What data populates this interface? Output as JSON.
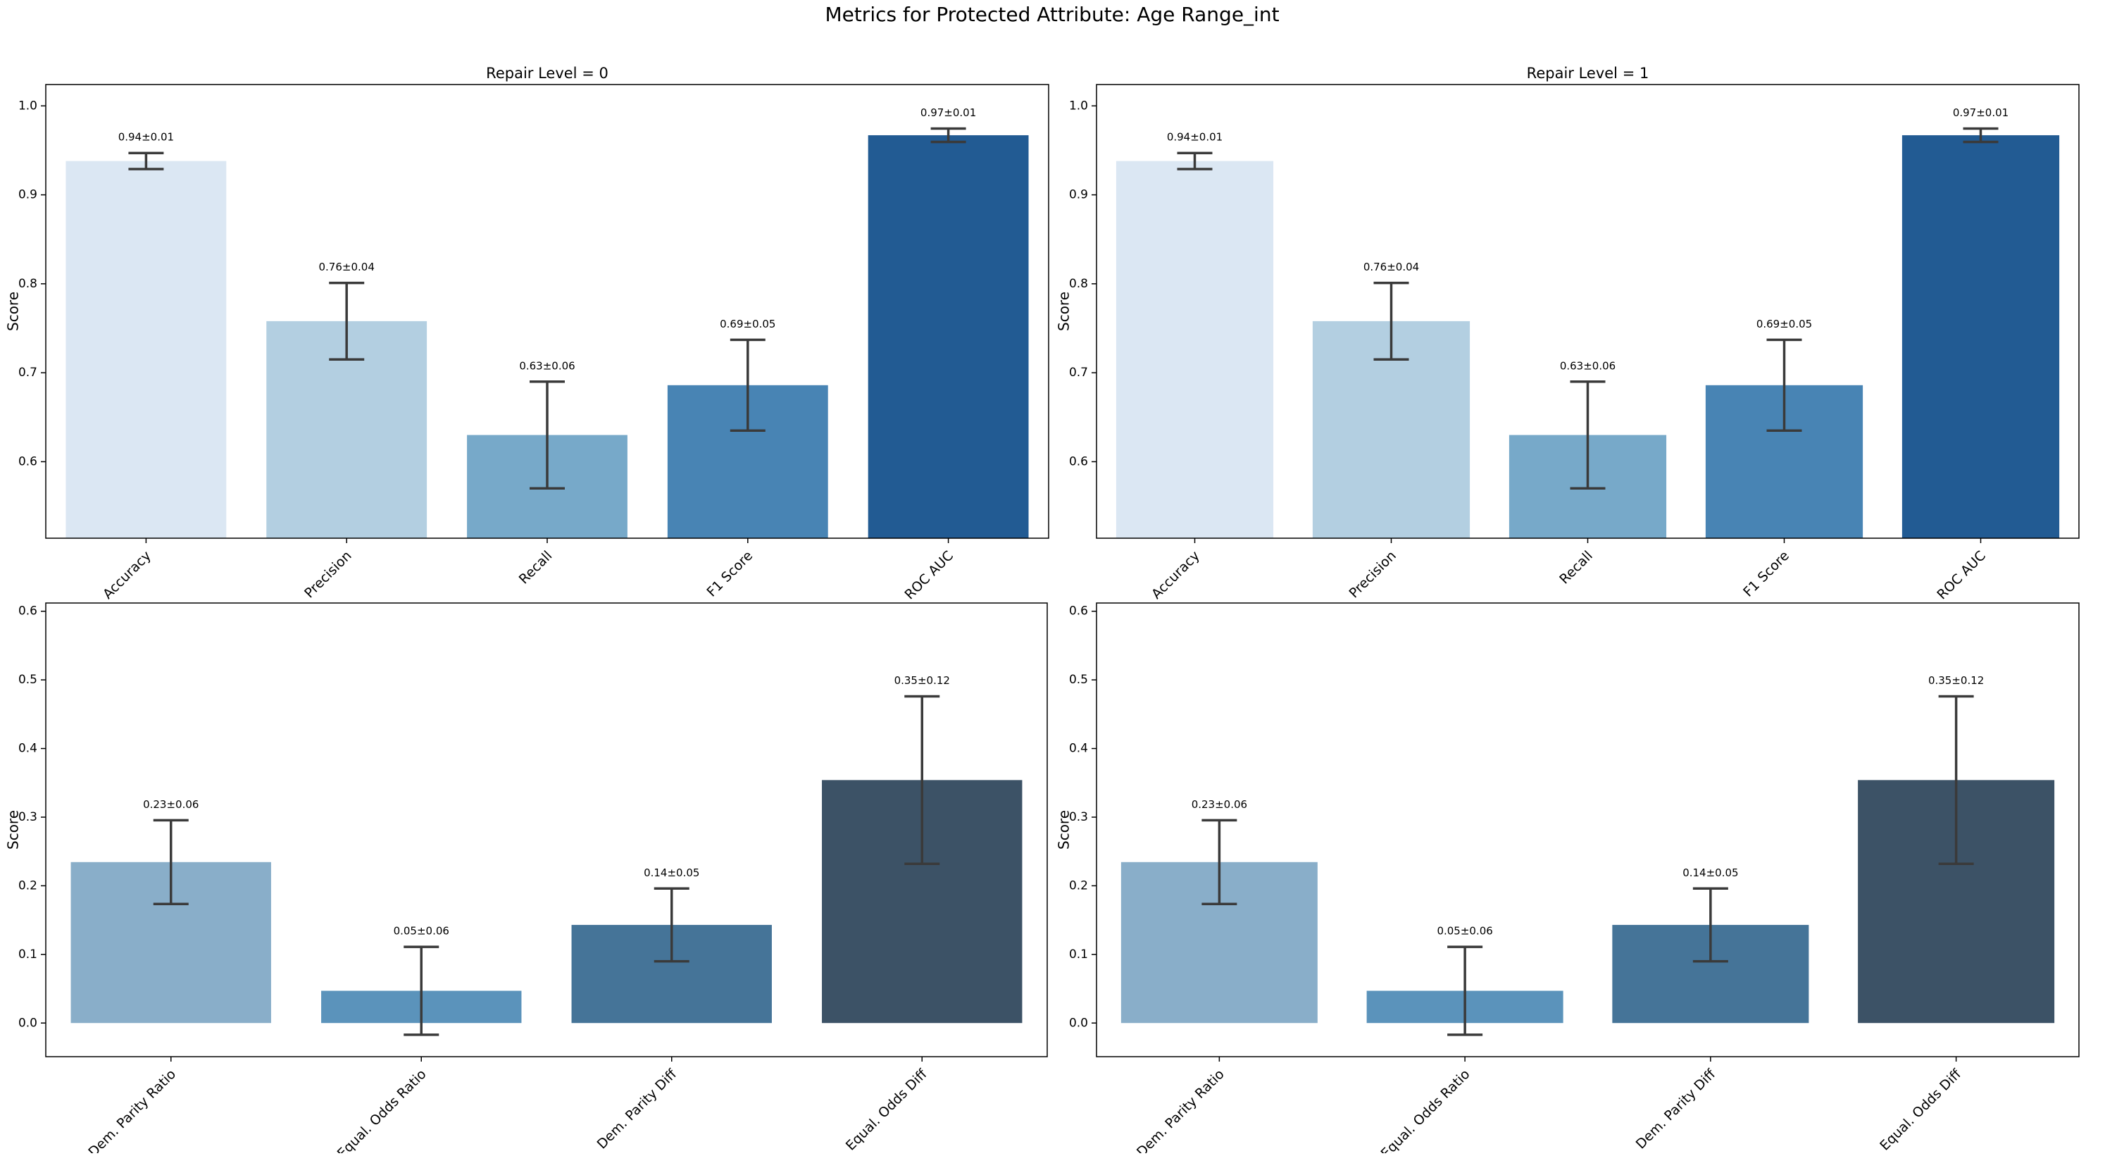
{
  "title": "Metrics for Protected Attribute: Age Range_int",
  "chart_data": [
    {
      "type": "bar",
      "title": "Repair Level = 0",
      "ylabel": "Score",
      "categories": [
        "Accuracy",
        "Precision",
        "Recall",
        "F1 Score",
        "ROC AUC"
      ],
      "values": [
        0.938,
        0.758,
        0.63,
        0.686,
        0.967
      ],
      "errors": [
        0.009,
        0.043,
        0.06,
        0.051,
        0.0075
      ],
      "value_labels": [
        "0.94±0.01",
        "0.76±0.04",
        "0.63±0.06",
        "0.69±0.05",
        "0.97±0.01"
      ],
      "colors": [
        "#dbe7f3",
        "#b3cfe1",
        "#77a9c9",
        "#4884b4",
        "#225b93"
      ],
      "ylim": [
        0.514,
        1.024
      ],
      "yticks": [
        0.6,
        0.7,
        0.8,
        0.9,
        {
          "value": 1,
          "label": "1.0"
        }
      ]
    },
    {
      "type": "bar",
      "title": "Repair Level = 1",
      "ylabel": "Score",
      "categories": [
        "Accuracy",
        "Precision",
        "Recall",
        "F1 Score",
        "ROC AUC"
      ],
      "values": [
        0.938,
        0.758,
        0.63,
        0.686,
        0.967
      ],
      "errors": [
        0.009,
        0.043,
        0.06,
        0.051,
        0.0075
      ],
      "value_labels": [
        "0.94±0.01",
        "0.76±0.04",
        "0.63±0.06",
        "0.69±0.05",
        "0.97±0.01"
      ],
      "colors": [
        "#dbe7f3",
        "#b3cfe1",
        "#77a9c9",
        "#4884b4",
        "#225b93"
      ],
      "ylim": [
        0.514,
        1.024
      ],
      "yticks": [
        0.6,
        0.7,
        0.8,
        0.9,
        {
          "value": 1,
          "label": "1.0"
        }
      ]
    },
    {
      "type": "bar",
      "ylabel": "Score",
      "categories": [
        "Dem. Parity Ratio",
        "Equal. Odds Ratio",
        "Dem. Parity Diff",
        "Equal. Odds Diff"
      ],
      "values": [
        0.2345,
        0.047,
        0.143,
        0.354
      ],
      "errors": [
        0.061,
        0.064,
        0.053,
        0.122
      ],
      "value_labels": [
        "0.23±0.06",
        "0.05±0.06",
        "0.14±0.05",
        "0.35±0.12"
      ],
      "colors": [
        "#89aec9",
        "#5b93bb",
        "#457498",
        "#3c5266"
      ],
      "ylim": [
        -0.049,
        0.612
      ],
      "yticks": [
        {
          "value": 0,
          "label": "0.0"
        },
        0.1,
        0.2,
        0.3,
        0.4,
        0.5,
        0.6
      ]
    },
    {
      "type": "bar",
      "ylabel": "Score",
      "categories": [
        "Dem. Parity Ratio",
        "Equal. Odds Ratio",
        "Dem. Parity Diff",
        "Equal. Odds Diff"
      ],
      "values": [
        0.2345,
        0.047,
        0.143,
        0.354
      ],
      "errors": [
        0.061,
        0.064,
        0.053,
        0.122
      ],
      "value_labels": [
        "0.23±0.06",
        "0.05±0.06",
        "0.14±0.05",
        "0.35±0.12"
      ],
      "colors": [
        "#89aec9",
        "#5b93bb",
        "#457498",
        "#3c5266"
      ],
      "ylim": [
        -0.049,
        0.612
      ],
      "yticks": [
        {
          "value": 0,
          "label": "0.0"
        },
        0.1,
        0.2,
        0.3,
        0.4,
        0.5,
        0.6
      ]
    }
  ]
}
